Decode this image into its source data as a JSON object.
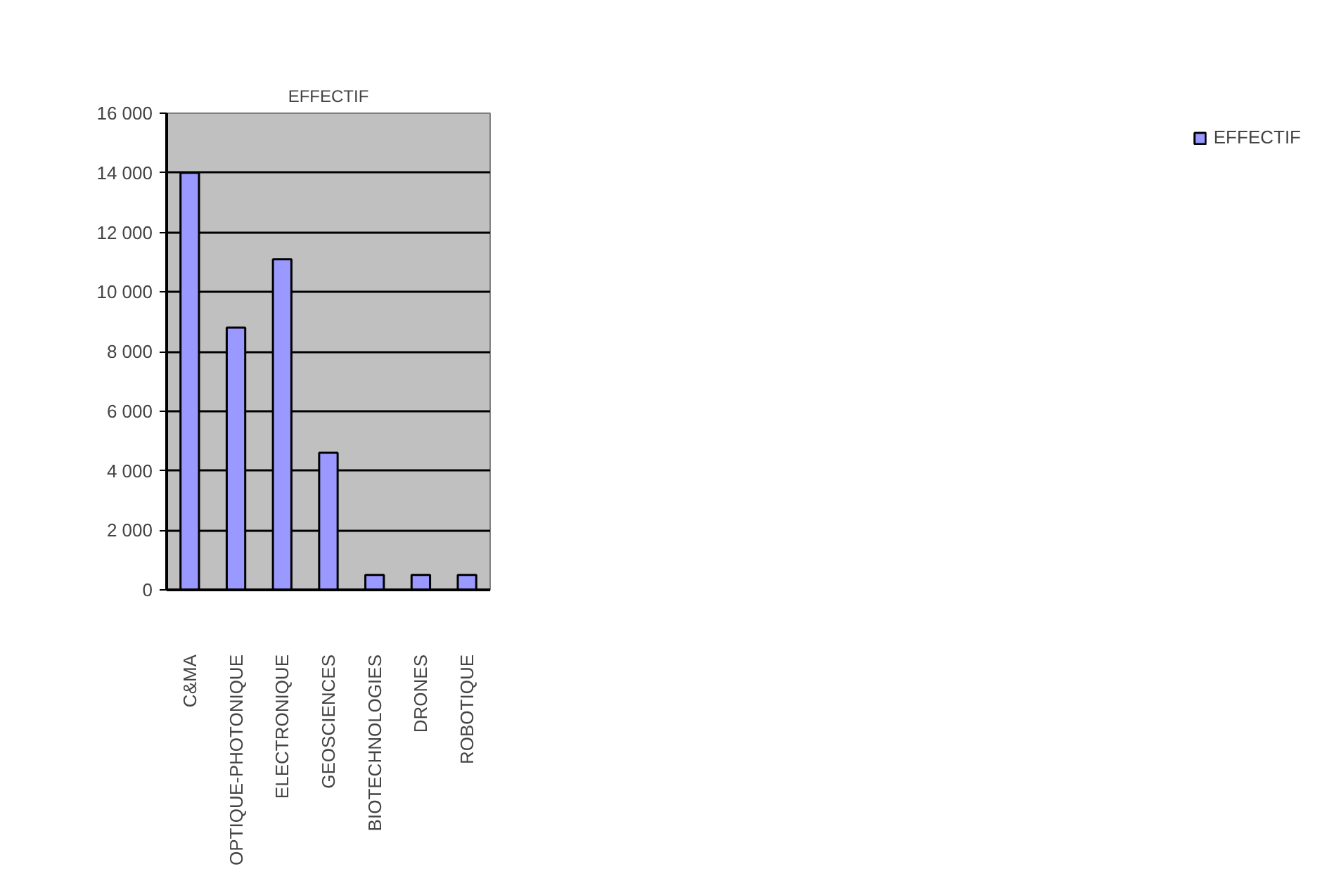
{
  "chart_data": {
    "type": "bar",
    "title": "EFFECTIF",
    "categories": [
      "C&MA",
      "OPTIQUE-PHOTONIQUE",
      "ELECTRONIQUE",
      "GEOSCIENCES",
      "BIOTECHNOLOGIES",
      "DRONES",
      "ROBOTIQUE"
    ],
    "series": [
      {
        "name": "EFFECTIF",
        "color": "#9999ff",
        "values": [
          14000,
          8800,
          11100,
          4600,
          500,
          500,
          500
        ]
      }
    ],
    "ylim": [
      0,
      16000
    ],
    "yticks": [
      {
        "value": 0,
        "label": "0"
      },
      {
        "value": 2000,
        "label": "2 000"
      },
      {
        "value": 4000,
        "label": "4 000"
      },
      {
        "value": 6000,
        "label": "6 000"
      },
      {
        "value": 8000,
        "label": "8 000"
      },
      {
        "value": 10000,
        "label": "10 000"
      },
      {
        "value": 12000,
        "label": "12 000"
      },
      {
        "value": 14000,
        "label": "14 000"
      },
      {
        "value": 16000,
        "label": "16 000"
      }
    ],
    "grid": "y",
    "legend": "right"
  }
}
